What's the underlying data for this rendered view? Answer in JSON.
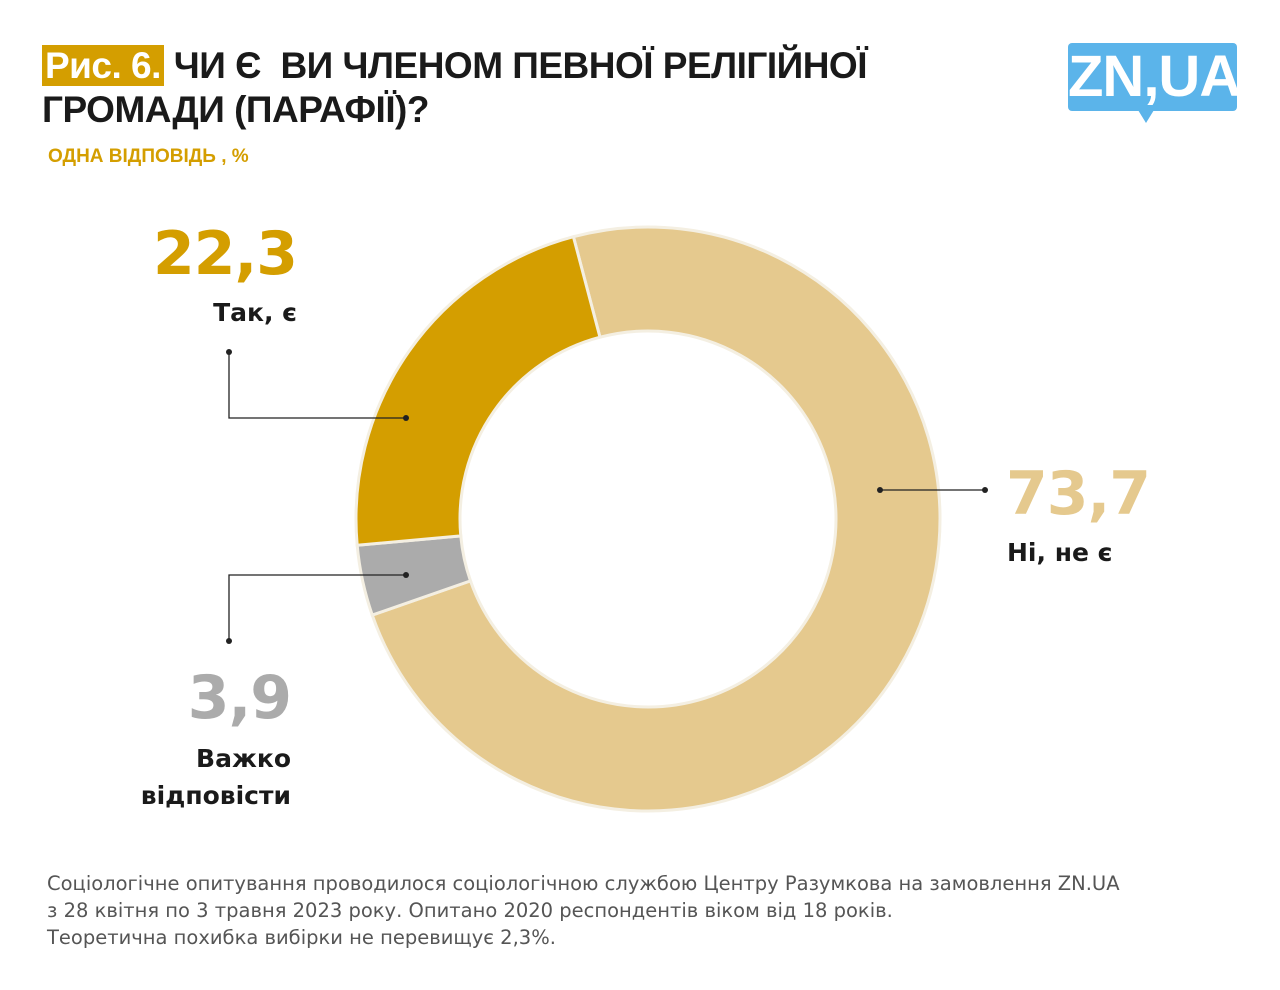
{
  "header": {
    "figure_label": "Рис. 6.",
    "title_line1": "ЧИ Є  ВИ ЧЛЕНОМ ПЕВНОЇ РЕЛІГІЙНОЇ",
    "title_line2": "ГРОМАДИ (ПАРАФІЇ)?",
    "subtitle": "ОДНА ВІДПОВІДЬ , %"
  },
  "logo": {
    "text": "ZN,UA",
    "color": "#5BB4EA"
  },
  "chart_data": {
    "type": "pie",
    "variant": "donut",
    "title": "ЧИ Є  ВИ ЧЛЕНОМ ПЕВНОЇ РЕЛІГІЙНОЇ ГРОМАДИ (ПАРАФІЇ)?",
    "unit": "%",
    "slices": [
      {
        "label": "Ні, не є",
        "value": 73.7,
        "value_text": "73,7",
        "color": "#E5C98E"
      },
      {
        "label": "Важко відповісти",
        "label_line1": "Важко",
        "label_line2": "відповісти",
        "value": 3.9,
        "value_text": "3,9",
        "color": "#ABABAB"
      },
      {
        "label": "Так, є",
        "value": 22.3,
        "value_text": "22,3",
        "color": "#D49E00"
      }
    ]
  },
  "footer": {
    "line1": "Соціологічне опитування проводилося соціологічною службою Центру Разумкова на замовлення ZN.UA",
    "line2": "з 28 квітня по 3 травня 2023 року. Опитано 2020 респондентів віком від 18 років.",
    "line3": "Теоретична похибка вибірки не перевищує 2,3%."
  }
}
